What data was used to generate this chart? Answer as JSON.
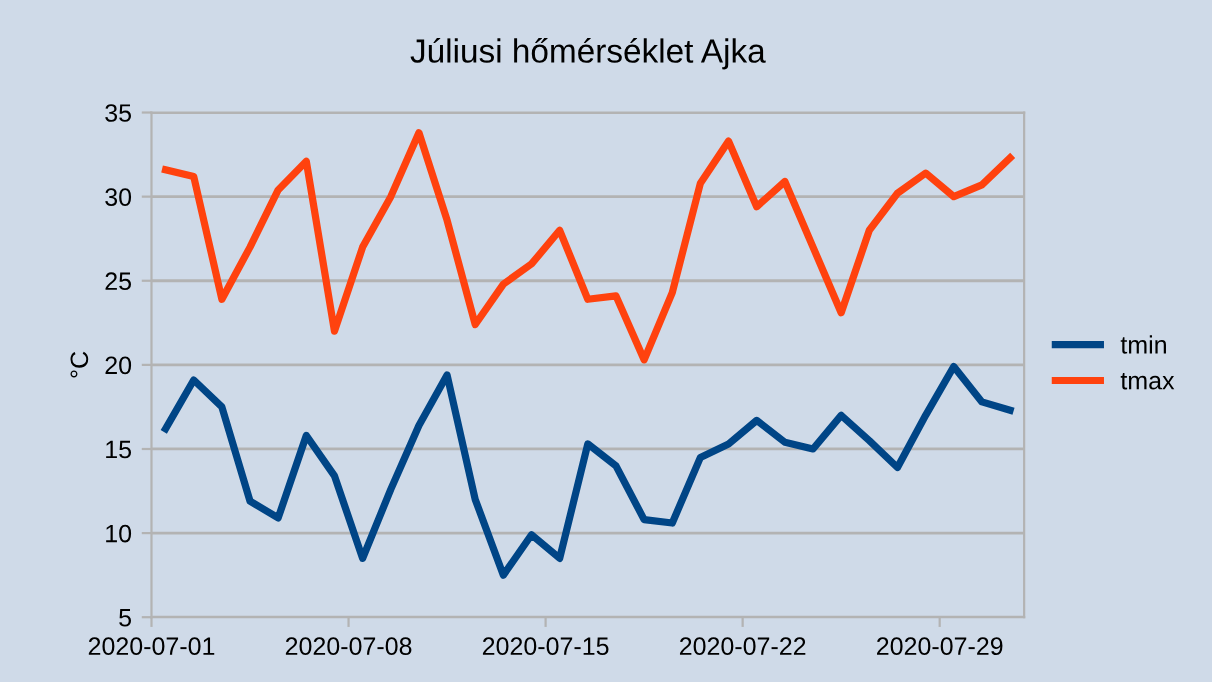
{
  "chart_data": {
    "type": "line",
    "title": "Júliusi hőmérséklet Ajka",
    "ylabel": "°C",
    "x": [
      "2020-07-01T12:00",
      "2020-07-02T12:00",
      "2020-07-03T12:00",
      "2020-07-04T12:00",
      "2020-07-05T12:00",
      "2020-07-06T12:00",
      "2020-07-07T12:00",
      "2020-07-08T12:00",
      "2020-07-09T12:00",
      "2020-07-10T12:00",
      "2020-07-11T12:00",
      "2020-07-12T12:00",
      "2020-07-13T12:00",
      "2020-07-14T12:00",
      "2020-07-15T12:00",
      "2020-07-16T12:00",
      "2020-07-17T12:00",
      "2020-07-18T12:00",
      "2020-07-19T12:00",
      "2020-07-20T12:00",
      "2020-07-21T12:00",
      "2020-07-22T12:00",
      "2020-07-23T12:00",
      "2020-07-24T12:00",
      "2020-07-25T12:00",
      "2020-07-26T12:00",
      "2020-07-27T12:00",
      "2020-07-28T12:00",
      "2020-07-29T12:00",
      "2020-07-30T12:00",
      "2020-07-31T12:00"
    ],
    "series": [
      {
        "name": "tmin",
        "color": "#004586",
        "values": [
          16.2,
          19.1,
          17.5,
          11.9,
          10.9,
          15.8,
          13.4,
          8.5,
          12.6,
          16.4,
          19.4,
          12.0,
          7.5,
          9.9,
          8.5,
          15.3,
          14.0,
          10.8,
          10.6,
          14.5,
          15.3,
          16.7,
          15.4,
          15.0,
          17.0,
          15.5,
          13.9,
          17.0,
          19.9,
          17.8,
          17.3
        ]
      },
      {
        "name": "tmax",
        "color": "#ff420e",
        "values": [
          31.6,
          31.2,
          23.9,
          27.0,
          30.4,
          32.1,
          22.0,
          27.0,
          30.0,
          33.8,
          28.6,
          22.4,
          24.8,
          26.0,
          28.0,
          23.9,
          24.1,
          20.3,
          24.3,
          30.8,
          33.3,
          29.4,
          30.9,
          27.0,
          23.1,
          28.0,
          30.2,
          31.4,
          30.0,
          30.7,
          32.3
        ]
      }
    ],
    "xlim": [
      "2020-07-01",
      "2020-08-01"
    ],
    "xticks": [
      {
        "value": "2020-07-01",
        "label": "2020-07-01"
      },
      {
        "value": "2020-07-08",
        "label": "2020-07-08"
      },
      {
        "value": "2020-07-15",
        "label": "2020-07-15"
      },
      {
        "value": "2020-07-22",
        "label": "2020-07-22"
      },
      {
        "value": "2020-07-29",
        "label": "2020-07-29"
      }
    ],
    "ylim": [
      5,
      35
    ],
    "yticks": [
      5,
      10,
      15,
      20,
      25,
      30,
      35
    ],
    "grid": "y",
    "legend": "right",
    "marker": "none",
    "line_style": "solid"
  }
}
